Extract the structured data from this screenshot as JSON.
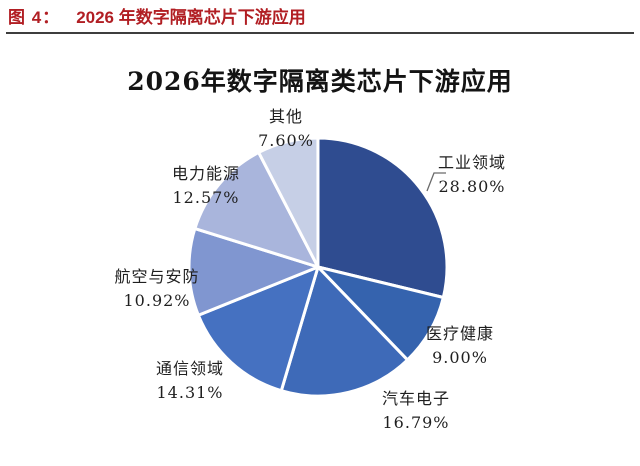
{
  "header": {
    "label": "图 4：",
    "title": "2026 年数字隔离芯片下游应用"
  },
  "colors": {
    "header_red": "#B11E23",
    "rule_gray": "#3D3D3D",
    "slice_gap_white": "#FFFFFF",
    "leader_line": "#6A6A6A",
    "label_text": "#1F1F1F"
  },
  "chart_data": {
    "type": "pie",
    "title": "2026年数字隔离类芯片下游应用",
    "start_angle_deg": 0,
    "direction": "clockwise",
    "legend_position": "none",
    "labels_on": "outside",
    "slices": [
      {
        "id": "industrial",
        "label": "工业领域",
        "value": 28.8,
        "value_label": "28.80%",
        "color": "#2F4C90"
      },
      {
        "id": "medical-health",
        "label": "医疗健康",
        "value": 9.0,
        "value_label": "9.00%",
        "color": "#3563AE"
      },
      {
        "id": "automotive",
        "label": "汽车电子",
        "value": 16.79,
        "value_label": "16.79%",
        "color": "#3E6AB8"
      },
      {
        "id": "communication",
        "label": "通信领域",
        "value": 14.31,
        "value_label": "14.31%",
        "color": "#4571C1"
      },
      {
        "id": "aerospace-security",
        "label": "航空与安防",
        "value": 10.92,
        "value_label": "10.92%",
        "color": "#8096D0"
      },
      {
        "id": "power-energy",
        "label": "电力能源",
        "value": 12.57,
        "value_label": "12.57%",
        "color": "#A9B5DC"
      },
      {
        "id": "other",
        "label": "其他",
        "value": 7.6,
        "value_label": "7.60%",
        "color": "#C6CFE6"
      }
    ]
  }
}
